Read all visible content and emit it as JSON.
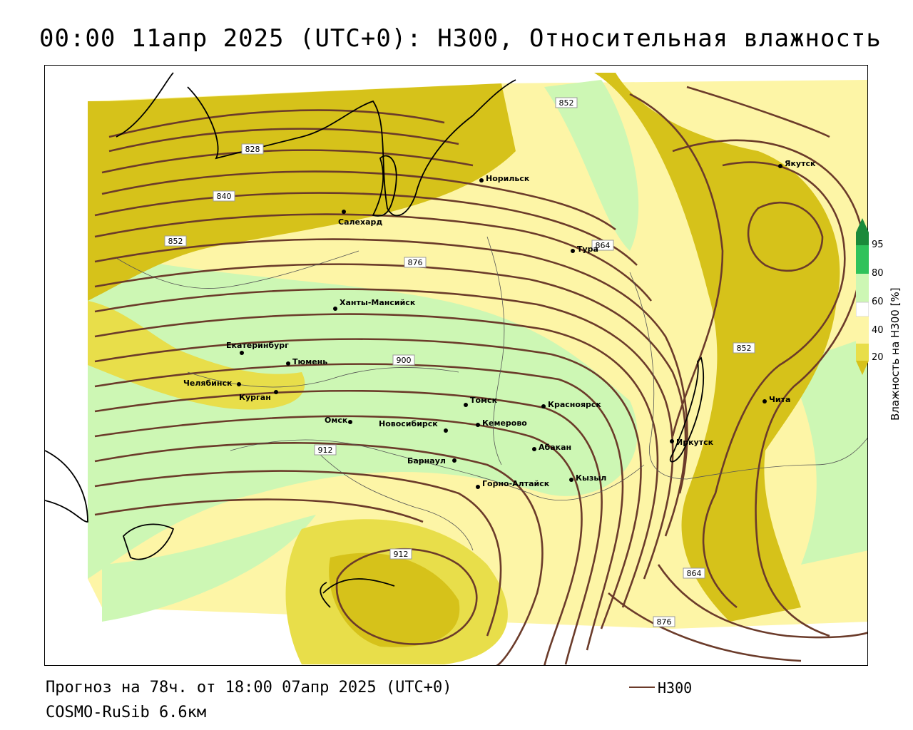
{
  "title": "00:00 11апр 2025 (UTC+0): H300, Относительная влажность",
  "forecast_line": "Прогноз на 78ч. от 18:00 07апр 2025 (UTC+0)",
  "model": "COSMO-RuSib 6.6км",
  "line_legend": {
    "label": "H300",
    "color": "#6b3b2a"
  },
  "colorbar": {
    "title": "Влажность на Н300 [%]",
    "ticks": [
      "95",
      "80",
      "60",
      "40",
      "20"
    ],
    "colors": {
      "very_dry": "#d6c21a",
      "dry": "#e8de4a",
      "mid": "#fdf5a6",
      "neutral": "#ffffff",
      "moist": "#cdf7b4",
      "wet": "#8fe38a",
      "very_wet": "#2fc25b",
      "saturated": "#1a8a3a"
    }
  },
  "cities": [
    {
      "name": "Норильск"
    },
    {
      "name": "Якутск"
    },
    {
      "name": "Салехард"
    },
    {
      "name": "Тура"
    },
    {
      "name": "Ханты-Мансийск"
    },
    {
      "name": "Екатеринбург"
    },
    {
      "name": "Тюмень"
    },
    {
      "name": "Челябинск"
    },
    {
      "name": "Курган"
    },
    {
      "name": "Омск"
    },
    {
      "name": "Новосибирск"
    },
    {
      "name": "Томск"
    },
    {
      "name": "Кемерово"
    },
    {
      "name": "Красноярск"
    },
    {
      "name": "Абакан"
    },
    {
      "name": "Барнаул"
    },
    {
      "name": "Горно-Алтайск"
    },
    {
      "name": "Кызыл"
    },
    {
      "name": "Иркутск"
    },
    {
      "name": "Чита"
    }
  ],
  "contour_labels": [
    "828",
    "840",
    "852",
    "852",
    "864",
    "876",
    "900",
    "912",
    "912",
    "852",
    "864",
    "876"
  ]
}
